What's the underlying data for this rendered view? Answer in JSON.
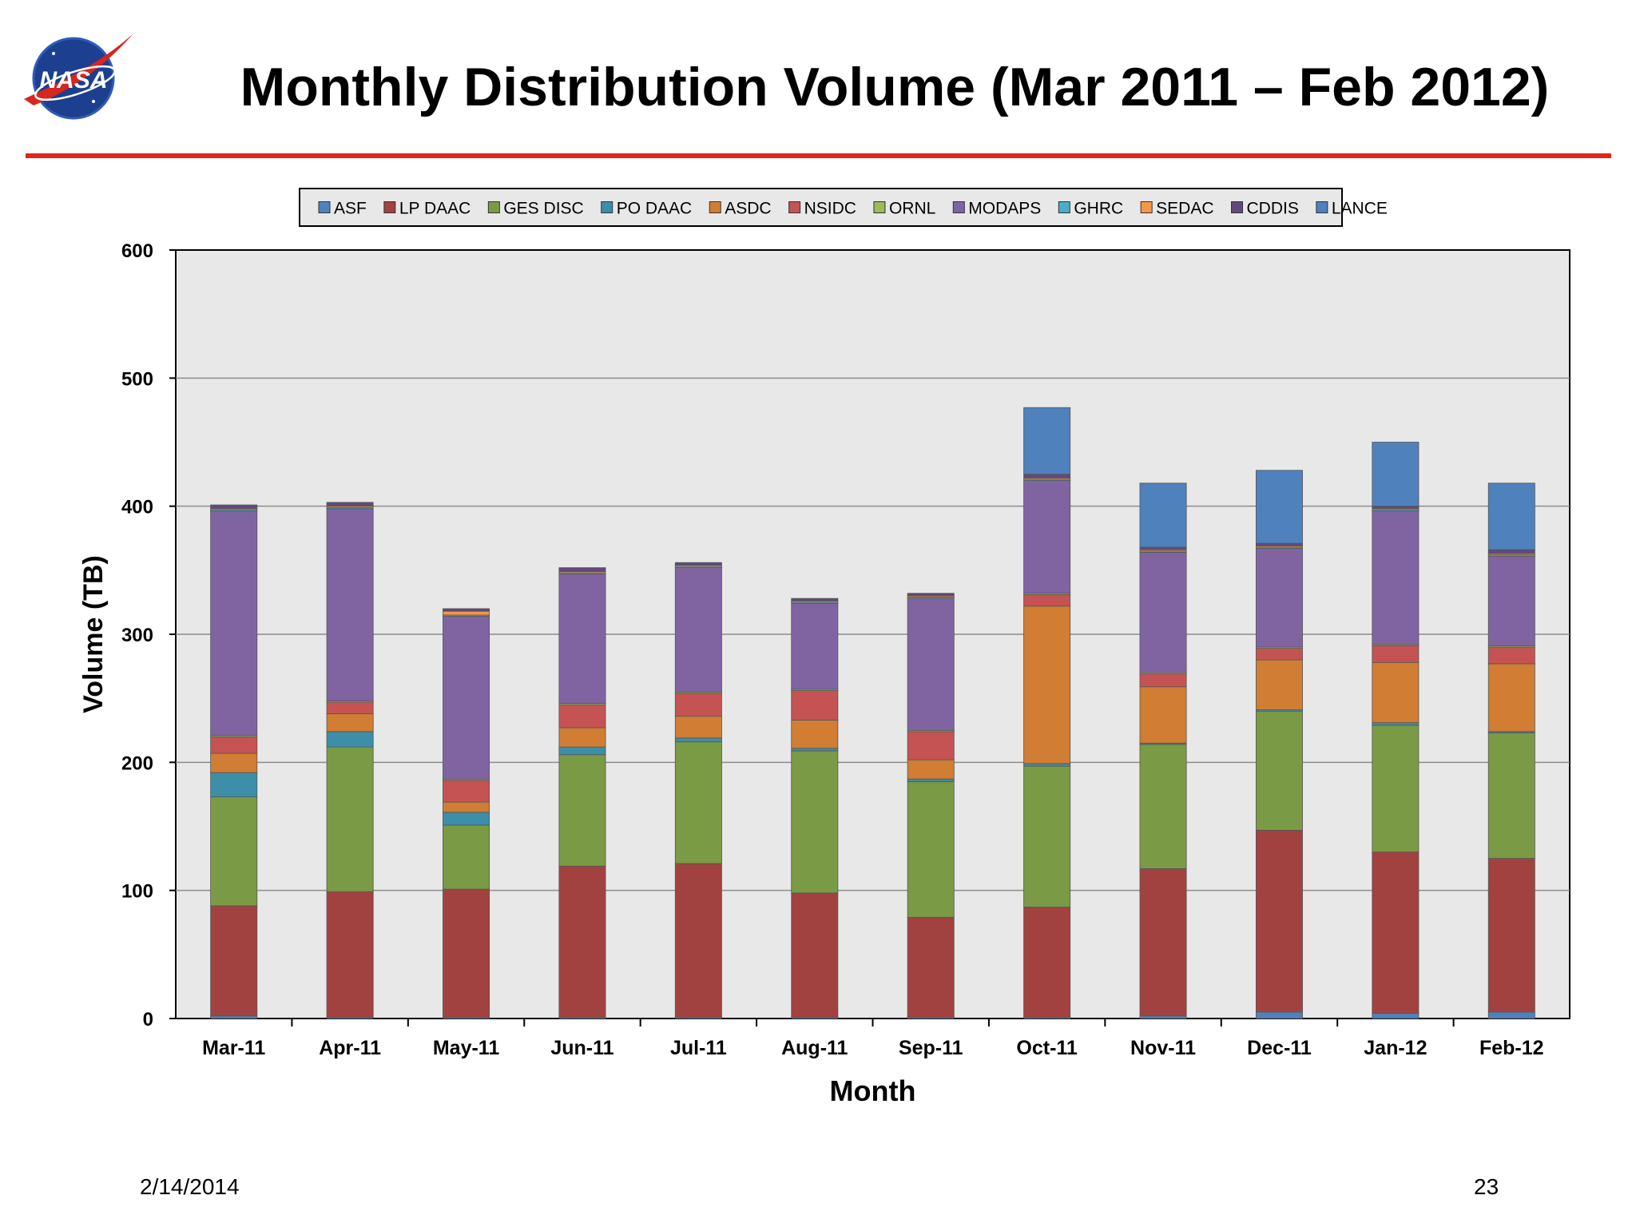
{
  "slide": {
    "title": "Monthly Distribution Volume (Mar 2011 – Feb 2012)",
    "logo_text": "NASA",
    "date": "2/14/2014",
    "page_number": "23"
  },
  "chart_data": {
    "type": "bar",
    "stacked": true,
    "title": "",
    "xlabel": "Month",
    "ylabel": "Volume (TB)",
    "ylim": [
      0,
      600
    ],
    "yticks": [
      0,
      100,
      200,
      300,
      400,
      500,
      600
    ],
    "grid": true,
    "legend_position": "top",
    "categories": [
      "Mar-11",
      "Apr-11",
      "May-11",
      "Jun-11",
      "Jul-11",
      "Aug-11",
      "Sep-11",
      "Oct-11",
      "Nov-11",
      "Dec-11",
      "Jan-12",
      "Feb-12"
    ],
    "series": [
      {
        "name": "ASF",
        "color": "#4f81bd",
        "values": [
          2,
          1,
          1,
          1,
          1,
          1,
          1,
          1,
          2,
          5,
          4,
          5
        ]
      },
      {
        "name": "LP DAAC",
        "color": "#a24240",
        "values": [
          86,
          98,
          100,
          118,
          120,
          97,
          78,
          86,
          115,
          142,
          126,
          120
        ]
      },
      {
        "name": "GES DISC",
        "color": "#7b9a45",
        "values": [
          85,
          113,
          50,
          87,
          95,
          111,
          106,
          110,
          97,
          93,
          99,
          98
        ]
      },
      {
        "name": "PO DAAC",
        "color": "#3d8ea8",
        "values": [
          19,
          12,
          10,
          6,
          3,
          2,
          2,
          2,
          1,
          1,
          2,
          1
        ]
      },
      {
        "name": "ASDC",
        "color": "#d17d33",
        "values": [
          15,
          14,
          8,
          15,
          17,
          22,
          15,
          123,
          44,
          39,
          47,
          53
        ]
      },
      {
        "name": "NSIDC",
        "color": "#c55353",
        "values": [
          13,
          9,
          17,
          18,
          18,
          23,
          22,
          9,
          10,
          9,
          13,
          13
        ]
      },
      {
        "name": "ORNL",
        "color": "#9bbb59",
        "values": [
          1,
          1,
          1,
          1,
          1,
          1,
          1,
          1,
          1,
          1,
          1,
          1
        ]
      },
      {
        "name": "MODAPS",
        "color": "#8064a2",
        "values": [
          175,
          150,
          127,
          101,
          97,
          67,
          103,
          88,
          94,
          77,
          104,
          70
        ]
      },
      {
        "name": "GHRC",
        "color": "#4bacc6",
        "values": [
          1,
          1,
          1,
          1,
          1,
          1,
          1,
          1,
          1,
          1,
          1,
          1
        ]
      },
      {
        "name": "SEDAC",
        "color": "#f79646",
        "values": [
          1,
          1,
          3,
          1,
          1,
          1,
          1,
          1,
          1,
          1,
          1,
          1
        ]
      },
      {
        "name": "CDDIS",
        "color": "#604a7b",
        "values": [
          3,
          3,
          2,
          3,
          2,
          2,
          2,
          3,
          2,
          2,
          2,
          3
        ]
      },
      {
        "name": "LANCE",
        "color": "#4f81bd",
        "values": [
          0,
          0,
          0,
          0,
          0,
          0,
          0,
          52,
          50,
          57,
          50,
          52
        ]
      }
    ]
  }
}
